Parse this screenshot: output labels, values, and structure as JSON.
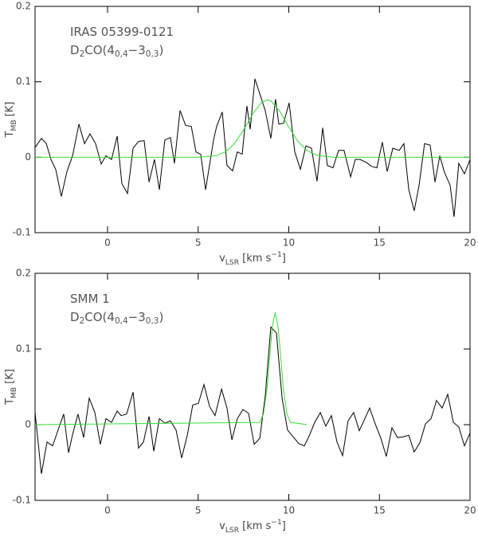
{
  "chart_data": [
    {
      "type": "line",
      "annotations": [
        [
          {
            "text": "IRAS 05399-0121"
          }
        ],
        [
          {
            "text": "D"
          },
          {
            "text": "2",
            "pos": "sub"
          },
          {
            "text": "CO(4"
          },
          {
            "text": "0,4",
            "pos": "sub"
          },
          {
            "text": "−3"
          },
          {
            "text": "0,3",
            "pos": "sub"
          },
          {
            "text": ")"
          }
        ]
      ],
      "xlabel": [
        {
          "text": "v"
        },
        {
          "text": "LSR",
          "pos": "sub"
        },
        {
          "text": " [km s"
        },
        {
          "text": "−1",
          "pos": "sup"
        },
        {
          "text": "]"
        }
      ],
      "ylabel": [
        {
          "text": "T"
        },
        {
          "text": "MB",
          "pos": "sub"
        },
        {
          "text": " [K]"
        }
      ],
      "xlim": [
        -4,
        20
      ],
      "xticks": [
        0,
        5,
        10,
        15,
        20
      ],
      "ylim": [
        -0.1,
        0.2
      ],
      "yticks": [
        -0.1,
        0,
        0.1,
        0.2
      ],
      "series": [
        {
          "color": "#000000",
          "x": [
            -4.0,
            -3.65,
            -3.38,
            -3.12,
            -2.86,
            -2.55,
            -2.24,
            -1.93,
            -1.58,
            -1.27,
            -0.97,
            -0.66,
            -0.35,
            -0.09,
            0.22,
            0.53,
            0.79,
            1.1,
            1.41,
            1.71,
            2.02,
            2.29,
            2.59,
            2.86,
            3.16,
            3.47,
            3.69,
            4.0,
            4.31,
            4.62,
            4.88,
            5.14,
            5.41,
            5.85,
            6.02,
            6.33,
            6.59,
            6.9,
            7.16,
            7.43,
            7.69,
            7.87,
            8.13,
            8.4,
            8.7,
            9.01,
            9.27,
            9.45,
            9.71,
            10.02,
            10.33,
            10.64,
            10.95,
            11.25,
            11.56,
            11.87,
            12.13,
            12.44,
            12.75,
            13.05,
            13.41,
            13.67,
            13.93,
            14.29,
            14.55,
            14.86,
            15.16,
            15.43,
            15.74,
            16.09,
            16.35,
            16.62,
            16.92,
            17.19,
            17.49,
            17.8,
            18.07,
            18.33,
            18.59,
            18.9,
            19.12,
            19.38,
            19.69,
            20.0
          ],
          "values": [
            0.013,
            0.025,
            0.018,
            -0.003,
            -0.016,
            -0.052,
            -0.019,
            0.002,
            0.044,
            0.018,
            0.031,
            0.018,
            -0.009,
            0.002,
            -0.003,
            0.028,
            -0.035,
            -0.048,
            0.012,
            0.021,
            0.022,
            -0.033,
            -0.003,
            -0.043,
            0.023,
            0.026,
            -0.008,
            0.062,
            0.042,
            0.041,
            0.007,
            0.004,
            -0.043,
            0.023,
            0.041,
            0.06,
            -0.011,
            -0.018,
            0.007,
            0.004,
            0.068,
            0.037,
            0.104,
            0.084,
            0.062,
            0.025,
            0.077,
            0.044,
            0.045,
            0.072,
            0.007,
            -0.016,
            0.015,
            0.012,
            -0.032,
            0.039,
            -0.011,
            -0.014,
            0.009,
            0.009,
            -0.026,
            -0.003,
            -0.003,
            -0.007,
            -0.012,
            -0.014,
            0.02,
            -0.019,
            0.012,
            0.009,
            0.018,
            -0.043,
            -0.071,
            -0.037,
            0.018,
            0.016,
            -0.033,
            0.002,
            -0.02,
            -0.037,
            -0.079,
            -0.008,
            -0.022,
            -0.003
          ]
        },
        {
          "color": "#33dd33",
          "x": [
            -4,
            5,
            5.5,
            6,
            6.5,
            7,
            7.5,
            8,
            8.5,
            8.8,
            9,
            9.5,
            10,
            10.5,
            11,
            11.5,
            12,
            12.5,
            20
          ],
          "values": [
            0,
            0,
            0.001,
            0.002,
            0.007,
            0.018,
            0.036,
            0.057,
            0.073,
            0.076,
            0.075,
            0.061,
            0.04,
            0.021,
            0.009,
            0.003,
            0.001,
            0,
            0
          ]
        }
      ]
    },
    {
      "type": "line",
      "annotations": [
        [
          {
            "text": "SMM 1"
          }
        ],
        [
          {
            "text": "D"
          },
          {
            "text": "2",
            "pos": "sub"
          },
          {
            "text": "CO(4"
          },
          {
            "text": "0,4",
            "pos": "sub"
          },
          {
            "text": "−3"
          },
          {
            "text": "0,3",
            "pos": "sub"
          },
          {
            "text": ")"
          }
        ]
      ],
      "xlabel": [
        {
          "text": "v"
        },
        {
          "text": "LSR",
          "pos": "sub"
        },
        {
          "text": " [km s"
        },
        {
          "text": "−1",
          "pos": "sup"
        },
        {
          "text": "]"
        }
      ],
      "ylabel": [
        {
          "text": "T"
        },
        {
          "text": "MB",
          "pos": "sub"
        },
        {
          "text": " [K]"
        }
      ],
      "xlim": [
        -4,
        20
      ],
      "xticks": [
        0,
        5,
        10,
        15,
        20
      ],
      "ylim": [
        -0.1,
        0.2
      ],
      "yticks": [
        -0.1,
        0,
        0.1,
        0.2
      ],
      "series": [
        {
          "color": "#000000",
          "x": [
            -4.0,
            -3.65,
            -3.34,
            -3.03,
            -2.73,
            -2.42,
            -2.15,
            -1.93,
            -1.63,
            -1.32,
            -1.01,
            -0.7,
            -0.4,
            -0.09,
            0.22,
            0.53,
            0.75,
            1.05,
            1.41,
            1.71,
            1.98,
            2.29,
            2.55,
            2.86,
            3.16,
            3.47,
            3.78,
            4.09,
            4.4,
            4.7,
            5.01,
            5.32,
            5.63,
            5.93,
            6.29,
            6.59,
            6.86,
            7.16,
            7.47,
            7.78,
            8.09,
            8.4,
            8.7,
            9.01,
            9.32,
            9.63,
            9.93,
            10.24,
            10.55,
            10.86,
            11.16,
            11.43,
            11.74,
            12.04,
            12.35,
            12.66,
            12.97,
            13.27,
            13.58,
            13.89,
            14.2,
            14.46,
            14.77,
            15.08,
            15.38,
            15.69,
            16.0,
            16.31,
            16.62,
            16.92,
            17.23,
            17.54,
            17.85,
            18.15,
            18.46,
            18.77,
            19.08,
            19.38,
            19.69,
            20.0
          ],
          "values": [
            0.016,
            -0.065,
            -0.023,
            -0.028,
            -0.007,
            0.014,
            -0.037,
            -0.013,
            0.014,
            -0.017,
            0.035,
            0.016,
            -0.026,
            0.008,
            0.003,
            0.018,
            0.012,
            0.014,
            0.043,
            -0.031,
            -0.023,
            0.011,
            -0.035,
            0.008,
            0.002,
            0.005,
            -0.007,
            -0.044,
            -0.014,
            0.026,
            0.028,
            0.053,
            0.024,
            0.012,
            0.047,
            0.022,
            -0.02,
            0.008,
            0.02,
            0.015,
            -0.026,
            -0.018,
            0.038,
            0.129,
            0.121,
            0.035,
            -0.007,
            -0.016,
            -0.025,
            -0.028,
            -0.013,
            0.003,
            0.016,
            -0.002,
            0.012,
            -0.023,
            -0.041,
            0.005,
            0.016,
            -0.008,
            0.008,
            0.022,
            0.001,
            -0.018,
            -0.042,
            -0.004,
            -0.017,
            -0.016,
            -0.014,
            -0.036,
            -0.024,
            0.001,
            0.008,
            0.032,
            0.022,
            0.04,
            0.003,
            -0.003,
            -0.028,
            -0.011
          ]
        },
        {
          "color": "#33dd33",
          "x": [
            -4,
            8.4,
            8.6,
            8.8,
            9.0,
            9.1,
            9.25,
            9.4,
            9.5,
            9.7,
            9.9,
            10.1,
            11
          ],
          "values": [
            0,
            0.003,
            0.014,
            0.048,
            0.105,
            0.131,
            0.148,
            0.131,
            0.105,
            0.048,
            0.014,
            0.003,
            0
          ]
        }
      ]
    }
  ]
}
